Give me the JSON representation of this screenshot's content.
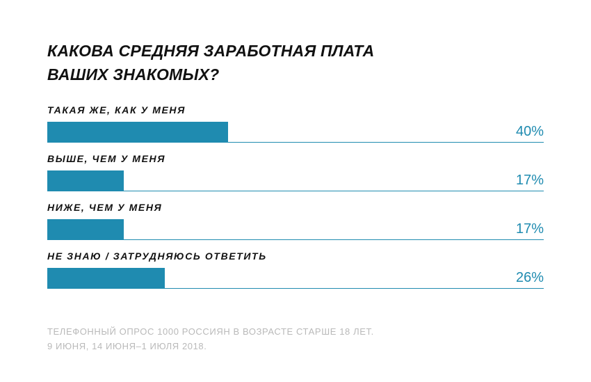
{
  "chart_data": {
    "type": "bar",
    "orientation": "horizontal",
    "title_lines": [
      "КАКОВА СРЕДНЯЯ ЗАРАБОТНАЯ ПЛАТА",
      "ВАШИХ ЗНАКОМЫХ?"
    ],
    "categories": [
      "ТАКАЯ ЖЕ, КАК У МЕНЯ",
      "ВЫШЕ, ЧЕМ У МЕНЯ",
      "НИЖЕ, ЧЕМ У МЕНЯ",
      "НЕ ЗНАЮ / ЗАТРУДНЯЮСЬ ОТВЕТИТЬ"
    ],
    "values": [
      40,
      17,
      17,
      26
    ],
    "value_labels": [
      "40%",
      "17%",
      "17%",
      "26%"
    ],
    "xlim": [
      0,
      110
    ],
    "bar_color": "#1f8bb0"
  },
  "footnote": {
    "line1": "ТЕЛЕФОННЫЙ ОПРОС 1000 РОССИЯН В ВОЗРАСТЕ СТАРШЕ 18 ЛЕТ.",
    "line2": "9 ИЮНЯ, 14 ИЮНЯ–1 ИЮЛЯ 2018."
  }
}
